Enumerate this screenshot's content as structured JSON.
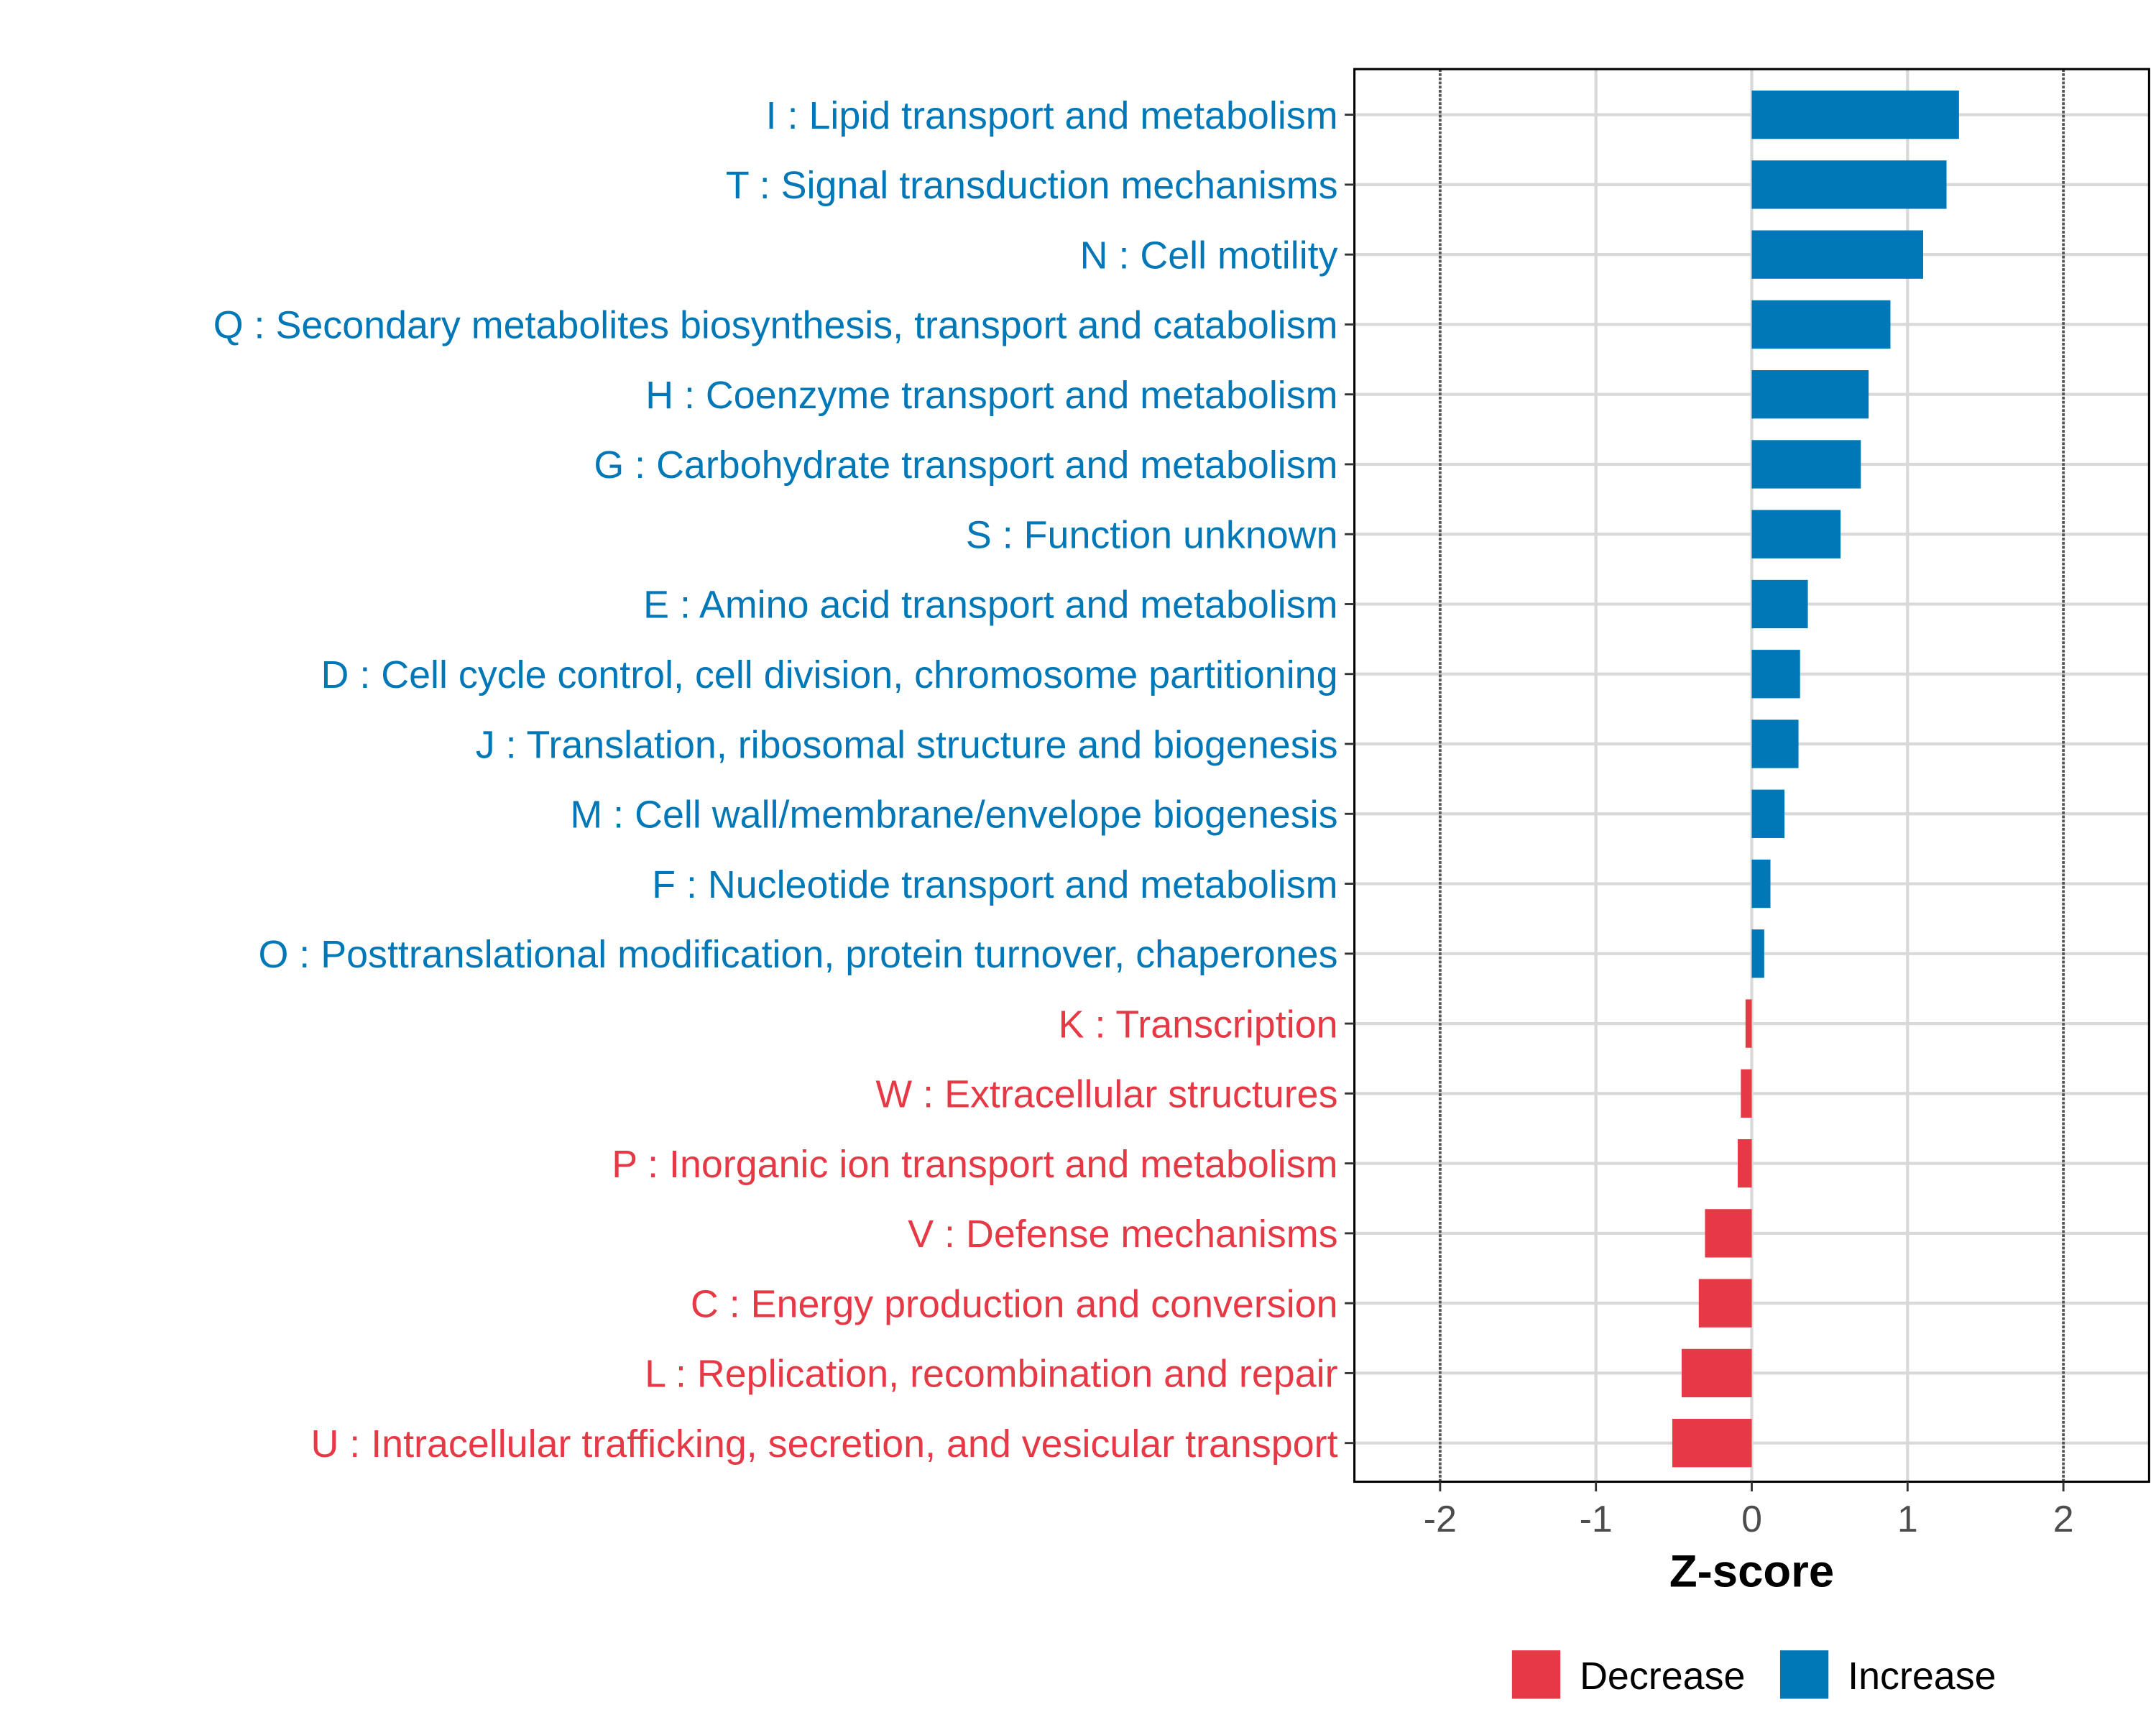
{
  "chart_data": {
    "type": "bar",
    "orientation": "horizontal",
    "title": "",
    "xlabel": "Z-score",
    "ylabel": "",
    "xlim": [
      -2.55,
      2.55
    ],
    "xticks": [
      -2,
      -1,
      0,
      1,
      2
    ],
    "xtick_labels": [
      "-2",
      "-1",
      "0",
      "1",
      "2"
    ],
    "reference_lines": [
      -2,
      2
    ],
    "grid": true,
    "legend_position": "bottom-right",
    "colors": {
      "Decrease": "#E63946",
      "Increase": "#0077B6"
    },
    "legend": [
      {
        "name": "Decrease",
        "color": "#E63946"
      },
      {
        "name": "Increase",
        "color": "#0077B6"
      }
    ],
    "categories": [
      "I : Lipid transport and metabolism",
      "T : Signal transduction mechanisms",
      "N : Cell motility",
      "Q : Secondary metabolites biosynthesis, transport and catabolism",
      "H : Coenzyme transport and metabolism",
      "G : Carbohydrate transport and metabolism",
      "S : Function unknown",
      "E : Amino acid transport and metabolism",
      "D : Cell cycle control, cell division, chromosome partitioning",
      "J : Translation, ribosomal structure and biogenesis",
      "M : Cell wall/membrane/envelope biogenesis",
      "F : Nucleotide transport and metabolism",
      "O : Posttranslational modification, protein turnover, chaperones",
      "K : Transcription",
      "W : Extracellular structures",
      "P : Inorganic ion transport and metabolism",
      "V : Defense mechanisms",
      "C : Energy production and conversion",
      "L : Replication, recombination and repair",
      "U : Intracellular trafficking, secretion, and vesicular transport"
    ],
    "values": [
      1.33,
      1.25,
      1.1,
      0.89,
      0.75,
      0.7,
      0.57,
      0.36,
      0.31,
      0.3,
      0.21,
      0.12,
      0.08,
      -0.04,
      -0.07,
      -0.09,
      -0.3,
      -0.34,
      -0.45,
      -0.51
    ]
  }
}
